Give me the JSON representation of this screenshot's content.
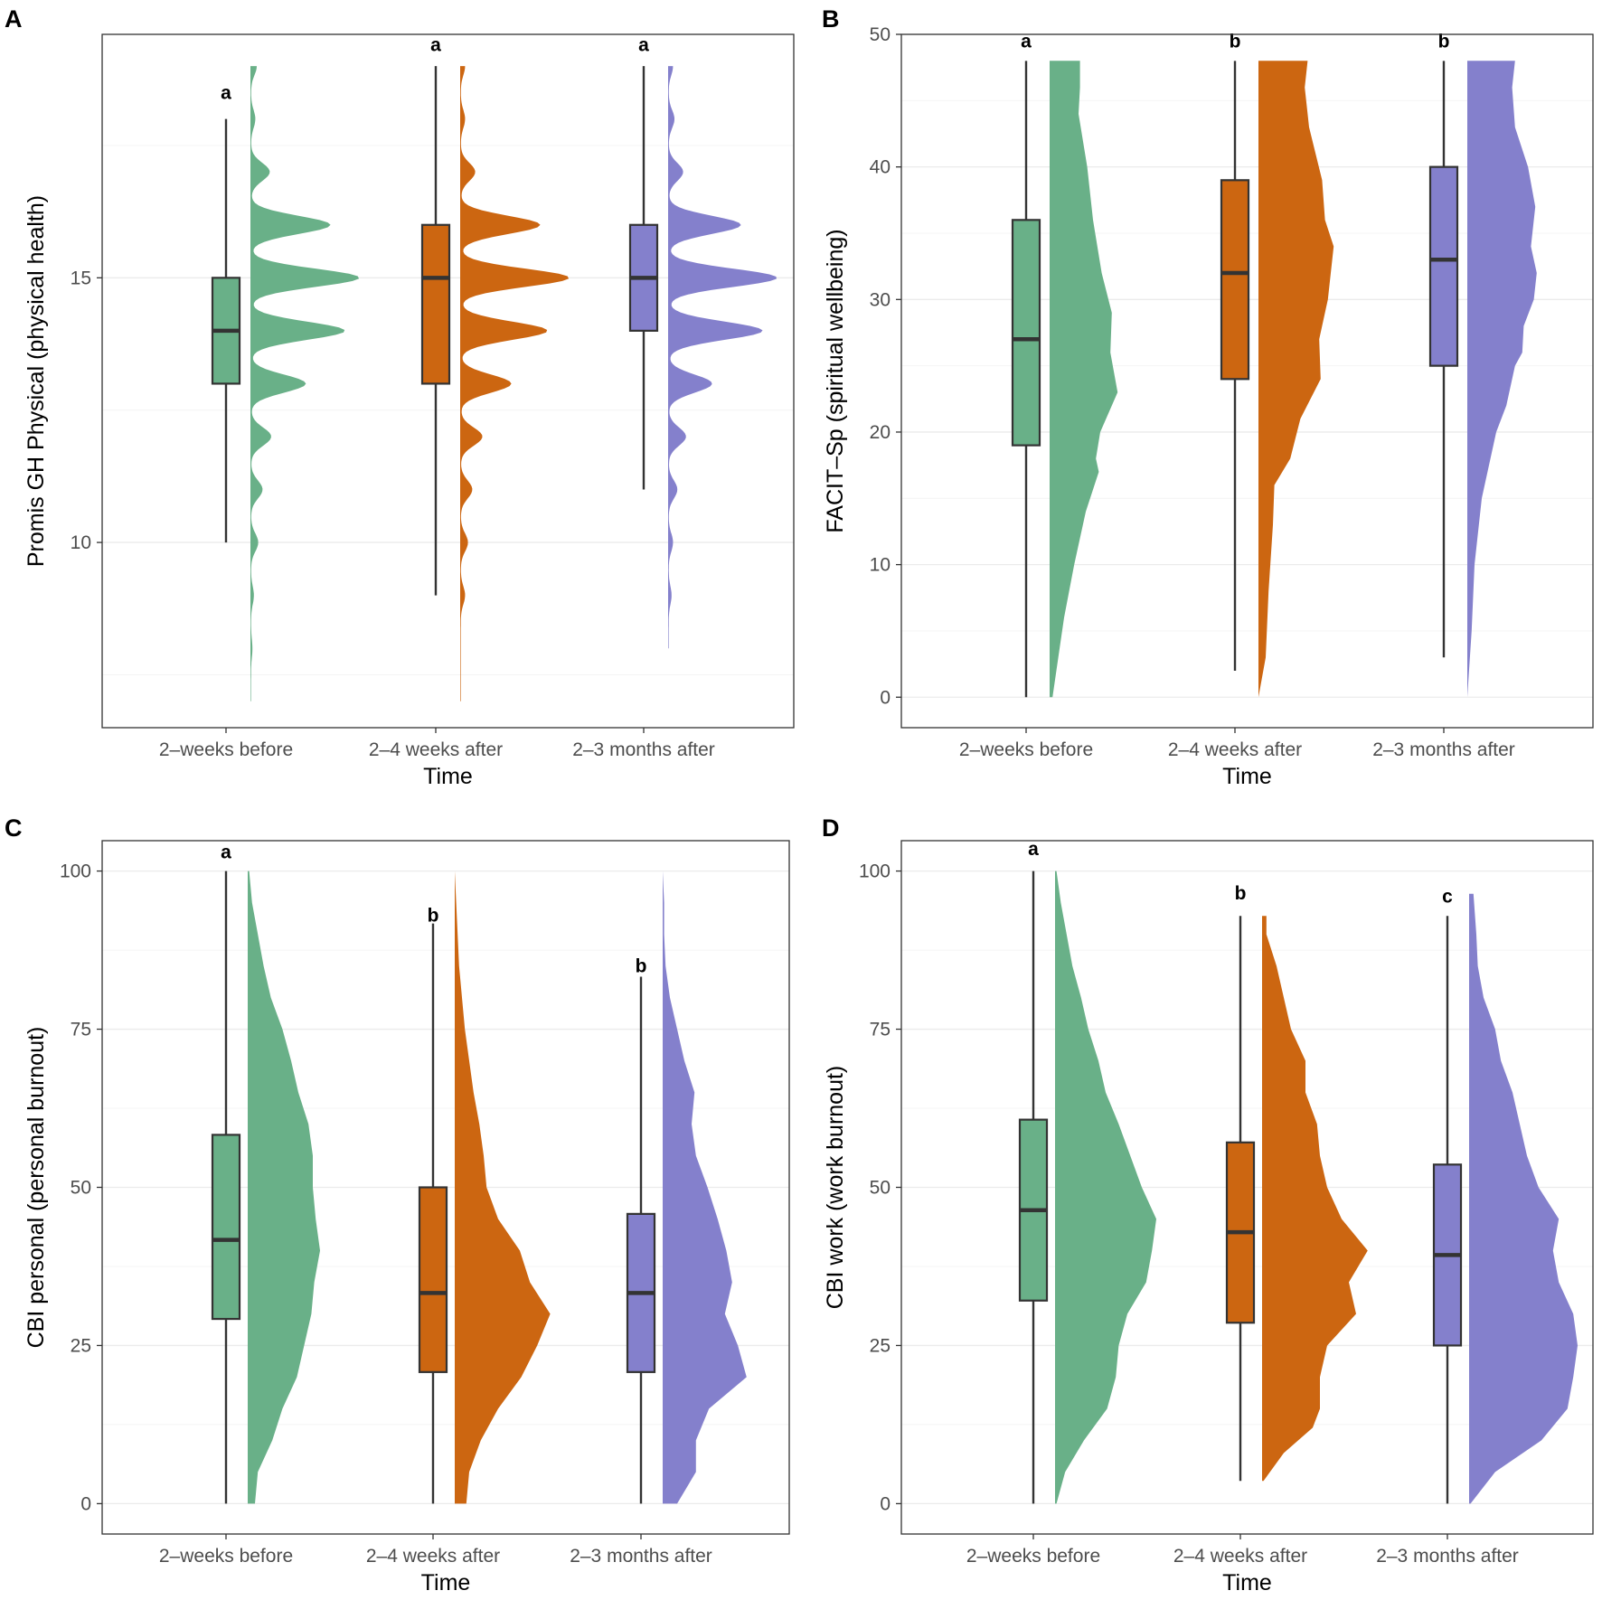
{
  "colors": {
    "green": "#69b088",
    "orange": "#cc6611",
    "purple": "#8480cc",
    "box_line": "#333333"
  },
  "chart_data": [
    {
      "panel": "A",
      "type": "raincloud",
      "xlabel": "Time",
      "ylabel": "Promis GH Physical (physical health)",
      "categories": [
        "2–weeks before",
        "2–4 weeks after",
        "2–3 months after"
      ],
      "ylim": [
        6.5,
        19.6
      ],
      "yticks": [
        10,
        15
      ],
      "grid_major": [
        10,
        15
      ],
      "grid_minor": [
        7.5,
        12.5,
        17.5
      ],
      "sig_letters": [
        "a",
        "a",
        "a"
      ],
      "sig_y": [
        18.5,
        19.4,
        19.4
      ],
      "boxes": [
        {
          "min": 10,
          "q1": 13,
          "median": 14,
          "q3": 15,
          "max": 18
        },
        {
          "min": 9,
          "q1": 13,
          "median": 15,
          "q3": 16,
          "max": 19
        },
        {
          "min": 11,
          "q1": 14,
          "median": 15,
          "q3": 16,
          "max": 19
        }
      ],
      "densities": [
        {
          "ymin": 7,
          "ymax": 19,
          "peaks": [
            [
              19,
              0.04
            ],
            [
              18,
              0.03
            ],
            [
              17,
              0.13
            ],
            [
              16,
              0.55
            ],
            [
              15,
              0.75
            ],
            [
              14,
              0.65
            ],
            [
              13,
              0.38
            ],
            [
              12,
              0.14
            ],
            [
              11,
              0.08
            ],
            [
              10,
              0.05
            ],
            [
              9,
              0.02
            ],
            [
              8,
              0.01
            ]
          ]
        },
        {
          "ymin": 7,
          "ymax": 19,
          "peaks": [
            [
              19,
              0.03
            ],
            [
              18,
              0.03
            ],
            [
              17,
              0.1
            ],
            [
              16,
              0.55
            ],
            [
              15,
              0.75
            ],
            [
              14,
              0.6
            ],
            [
              13,
              0.35
            ],
            [
              12,
              0.15
            ],
            [
              11,
              0.08
            ],
            [
              10,
              0.05
            ],
            [
              9,
              0.03
            ]
          ]
        },
        {
          "ymin": 8,
          "ymax": 19,
          "peaks": [
            [
              19,
              0.03
            ],
            [
              18,
              0.04
            ],
            [
              17,
              0.1
            ],
            [
              16,
              0.5
            ],
            [
              15,
              0.75
            ],
            [
              14,
              0.65
            ],
            [
              13,
              0.3
            ],
            [
              12,
              0.12
            ],
            [
              11,
              0.06
            ],
            [
              10,
              0.03
            ],
            [
              9,
              0.02
            ]
          ]
        }
      ]
    },
    {
      "panel": "B",
      "type": "raincloud",
      "xlabel": "Time",
      "ylabel": "FACIT–Sp (spiritual wellbeing)",
      "categories": [
        "2–weeks before",
        "2–4 weeks after",
        "2–3 months after"
      ],
      "ylim": [
        -2.3,
        50
      ],
      "yticks": [
        0,
        10,
        20,
        30,
        40,
        50
      ],
      "grid_major": [
        0,
        10,
        20,
        30,
        40,
        50
      ],
      "grid_minor": [
        5,
        15,
        25,
        35,
        45
      ],
      "sig_letters": [
        "a",
        "b",
        "b"
      ],
      "sig_y": [
        49.5,
        49.5,
        49.5
      ],
      "boxes": [
        {
          "min": 0,
          "q1": 19,
          "median": 27,
          "q3": 36,
          "max": 48
        },
        {
          "min": 2,
          "q1": 24,
          "median": 32,
          "q3": 39,
          "max": 48
        },
        {
          "min": 3,
          "q1": 25,
          "median": 33,
          "q3": 40,
          "max": 48
        }
      ],
      "densities": [
        {
          "ymin": 0,
          "ymax": 48,
          "w": [
            [
              0,
              0.02
            ],
            [
              3,
              0.06
            ],
            [
              6,
              0.1
            ],
            [
              10,
              0.17
            ],
            [
              14,
              0.25
            ],
            [
              17,
              0.34
            ],
            [
              18,
              0.32
            ],
            [
              20,
              0.35
            ],
            [
              23,
              0.47
            ],
            [
              26,
              0.42
            ],
            [
              29,
              0.43
            ],
            [
              32,
              0.36
            ],
            [
              36,
              0.3
            ],
            [
              40,
              0.26
            ],
            [
              44,
              0.2
            ],
            [
              46,
              0.21
            ],
            [
              48,
              0.21
            ]
          ]
        },
        {
          "ymin": 0,
          "ymax": 48,
          "w": [
            [
              0,
              0.0
            ],
            [
              3,
              0.05
            ],
            [
              8,
              0.07
            ],
            [
              13,
              0.1
            ],
            [
              16,
              0.11
            ],
            [
              18,
              0.22
            ],
            [
              21,
              0.29
            ],
            [
              24,
              0.43
            ],
            [
              27,
              0.42
            ],
            [
              30,
              0.48
            ],
            [
              34,
              0.52
            ],
            [
              36,
              0.46
            ],
            [
              39,
              0.44
            ],
            [
              43,
              0.35
            ],
            [
              46,
              0.32
            ],
            [
              48,
              0.34
            ]
          ]
        },
        {
          "ymin": 0,
          "ymax": 48,
          "w": [
            [
              0,
              0.0
            ],
            [
              5,
              0.03
            ],
            [
              10,
              0.05
            ],
            [
              15,
              0.1
            ],
            [
              20,
              0.2
            ],
            [
              22,
              0.27
            ],
            [
              25,
              0.33
            ],
            [
              26,
              0.38
            ],
            [
              28,
              0.39
            ],
            [
              30,
              0.46
            ],
            [
              32,
              0.48
            ],
            [
              34,
              0.44
            ],
            [
              37,
              0.47
            ],
            [
              40,
              0.42
            ],
            [
              43,
              0.33
            ],
            [
              46,
              0.31
            ],
            [
              48,
              0.33
            ]
          ]
        }
      ]
    },
    {
      "panel": "C",
      "type": "raincloud",
      "xlabel": "Time",
      "ylabel": "CBI personal (personal burnout)",
      "categories": [
        "2–weeks before",
        "2–4 weeks after",
        "2–3 months after"
      ],
      "ylim": [
        -4.8,
        104.8
      ],
      "yticks": [
        0,
        25,
        50,
        75,
        100
      ],
      "grid_major": [
        0,
        25,
        50,
        75,
        100
      ],
      "grid_minor": [
        12.5,
        37.5,
        62.5,
        87.5
      ],
      "sig_letters": [
        "a",
        "b",
        "b"
      ],
      "sig_y": [
        103,
        93,
        85
      ],
      "boxes": [
        {
          "min": 0,
          "q1": 29.2,
          "median": 41.7,
          "q3": 58.3,
          "max": 100
        },
        {
          "min": 0,
          "q1": 20.8,
          "median": 33.3,
          "q3": 50,
          "max": 91.7
        },
        {
          "min": 0,
          "q1": 20.8,
          "median": 33.3,
          "q3": 45.8,
          "max": 83.3
        }
      ],
      "densities": [
        {
          "ymin": 0,
          "ymax": 100,
          "w": [
            [
              0,
              0.05
            ],
            [
              5,
              0.07
            ],
            [
              10,
              0.17
            ],
            [
              15,
              0.24
            ],
            [
              20,
              0.34
            ],
            [
              25,
              0.39
            ],
            [
              30,
              0.44
            ],
            [
              35,
              0.46
            ],
            [
              40,
              0.5
            ],
            [
              45,
              0.47
            ],
            [
              50,
              0.45
            ],
            [
              55,
              0.45
            ],
            [
              60,
              0.42
            ],
            [
              65,
              0.35
            ],
            [
              70,
              0.3
            ],
            [
              75,
              0.24
            ],
            [
              80,
              0.16
            ],
            [
              85,
              0.11
            ],
            [
              90,
              0.07
            ],
            [
              95,
              0.03
            ],
            [
              100,
              0.01
            ]
          ]
        },
        {
          "ymin": 0,
          "ymax": 100,
          "w": [
            [
              0,
              0.08
            ],
            [
              5,
              0.1
            ],
            [
              10,
              0.18
            ],
            [
              15,
              0.3
            ],
            [
              20,
              0.46
            ],
            [
              25,
              0.57
            ],
            [
              30,
              0.66
            ],
            [
              35,
              0.52
            ],
            [
              40,
              0.45
            ],
            [
              45,
              0.3
            ],
            [
              50,
              0.22
            ],
            [
              55,
              0.2
            ],
            [
              60,
              0.17
            ],
            [
              65,
              0.13
            ],
            [
              70,
              0.1
            ],
            [
              75,
              0.07
            ],
            [
              80,
              0.05
            ],
            [
              85,
              0.03
            ],
            [
              90,
              0.02
            ],
            [
              95,
              0.01
            ],
            [
              100,
              0.0
            ]
          ]
        },
        {
          "ymin": 0,
          "ymax": 100,
          "w": [
            [
              0,
              0.1
            ],
            [
              5,
              0.23
            ],
            [
              10,
              0.23
            ],
            [
              15,
              0.32
            ],
            [
              20,
              0.58
            ],
            [
              25,
              0.52
            ],
            [
              30,
              0.43
            ],
            [
              35,
              0.48
            ],
            [
              40,
              0.44
            ],
            [
              45,
              0.38
            ],
            [
              50,
              0.31
            ],
            [
              55,
              0.23
            ],
            [
              60,
              0.2
            ],
            [
              65,
              0.22
            ],
            [
              70,
              0.15
            ],
            [
              75,
              0.1
            ],
            [
              80,
              0.05
            ],
            [
              85,
              0.02
            ],
            [
              90,
              0.01
            ],
            [
              95,
              0.01
            ],
            [
              100,
              0.0
            ]
          ]
        }
      ]
    },
    {
      "panel": "D",
      "type": "raincloud",
      "xlabel": "Time",
      "ylabel": "CBI work (work burnout)",
      "categories": [
        "2–weeks before",
        "2–4 weeks after",
        "2–3 months after"
      ],
      "ylim": [
        -4.8,
        104.8
      ],
      "yticks": [
        0,
        25,
        50,
        75,
        100
      ],
      "grid_major": [
        0,
        25,
        50,
        75,
        100
      ],
      "grid_minor": [
        12.5,
        37.5,
        62.5,
        87.5
      ],
      "sig_letters": [
        "a",
        "b",
        "c"
      ],
      "sig_y": [
        103.5,
        96.5,
        96
      ],
      "boxes": [
        {
          "min": 0,
          "q1": 32.1,
          "median": 46.4,
          "q3": 60.7,
          "max": 100
        },
        {
          "min": 3.6,
          "q1": 28.6,
          "median": 42.9,
          "q3": 57.1,
          "max": 92.9
        },
        {
          "min": 0,
          "q1": 25,
          "median": 39.3,
          "q3": 53.6,
          "max": 92.9
        }
      ],
      "densities": [
        {
          "ymin": 0,
          "ymax": 100,
          "w": [
            [
              0,
              0.01
            ],
            [
              5,
              0.07
            ],
            [
              10,
              0.2
            ],
            [
              15,
              0.36
            ],
            [
              20,
              0.42
            ],
            [
              25,
              0.44
            ],
            [
              30,
              0.5
            ],
            [
              35,
              0.63
            ],
            [
              40,
              0.67
            ],
            [
              45,
              0.7
            ],
            [
              50,
              0.6
            ],
            [
              55,
              0.52
            ],
            [
              60,
              0.44
            ],
            [
              65,
              0.35
            ],
            [
              70,
              0.3
            ],
            [
              75,
              0.23
            ],
            [
              80,
              0.18
            ],
            [
              85,
              0.12
            ],
            [
              90,
              0.08
            ],
            [
              95,
              0.04
            ],
            [
              100,
              0.01
            ]
          ]
        },
        {
          "ymin": 3.6,
          "ymax": 92.9,
          "w": [
            [
              3.6,
              0.01
            ],
            [
              8,
              0.15
            ],
            [
              12,
              0.35
            ],
            [
              15,
              0.4
            ],
            [
              20,
              0.4
            ],
            [
              25,
              0.45
            ],
            [
              30,
              0.65
            ],
            [
              35,
              0.6
            ],
            [
              40,
              0.73
            ],
            [
              45,
              0.55
            ],
            [
              50,
              0.45
            ],
            [
              55,
              0.4
            ],
            [
              60,
              0.38
            ],
            [
              65,
              0.3
            ],
            [
              70,
              0.3
            ],
            [
              75,
              0.2
            ],
            [
              80,
              0.15
            ],
            [
              85,
              0.1
            ],
            [
              90,
              0.03
            ],
            [
              92.9,
              0.03
            ]
          ]
        },
        {
          "ymin": 0,
          "ymax": 96.4,
          "w": [
            [
              0,
              0.01
            ],
            [
              5,
              0.18
            ],
            [
              10,
              0.5
            ],
            [
              15,
              0.68
            ],
            [
              20,
              0.72
            ],
            [
              25,
              0.75
            ],
            [
              30,
              0.72
            ],
            [
              35,
              0.62
            ],
            [
              40,
              0.58
            ],
            [
              45,
              0.62
            ],
            [
              50,
              0.48
            ],
            [
              55,
              0.4
            ],
            [
              60,
              0.35
            ],
            [
              65,
              0.3
            ],
            [
              70,
              0.22
            ],
            [
              75,
              0.18
            ],
            [
              80,
              0.1
            ],
            [
              85,
              0.06
            ],
            [
              90,
              0.05
            ],
            [
              96.4,
              0.03
            ]
          ]
        }
      ]
    }
  ]
}
